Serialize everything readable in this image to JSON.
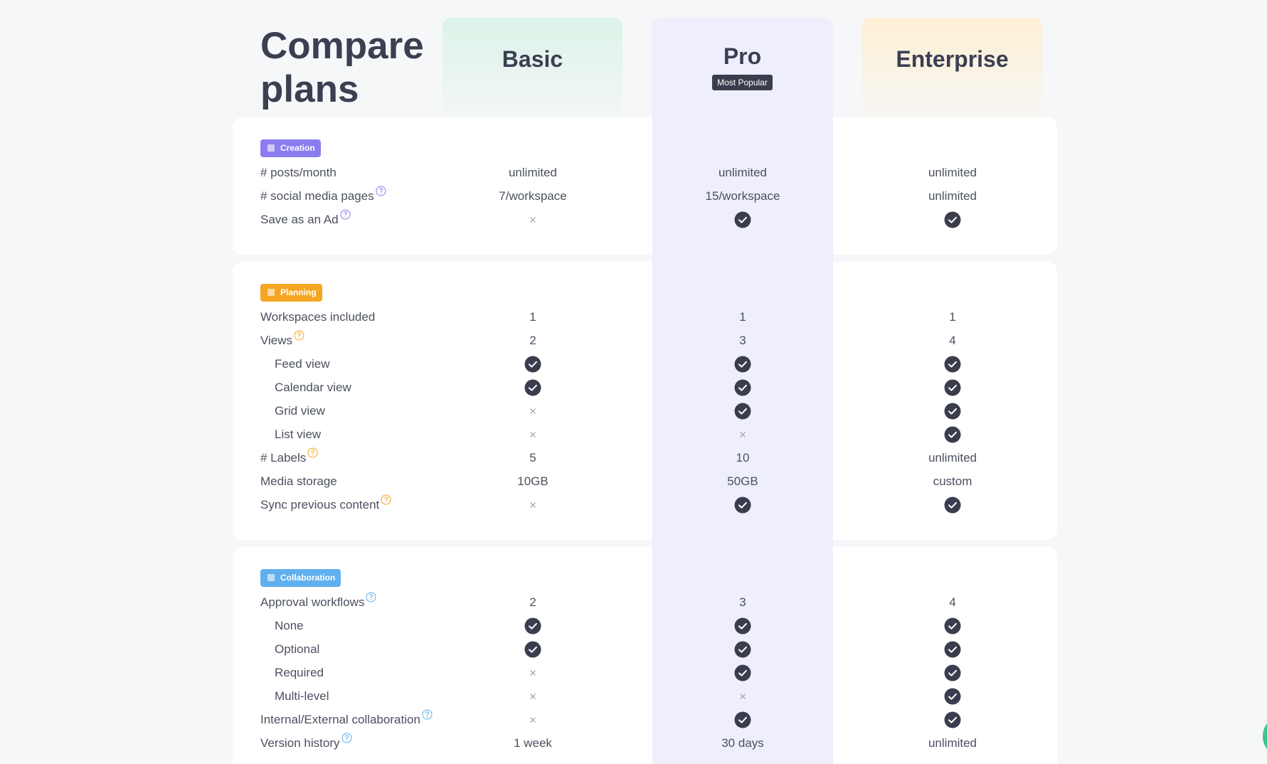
{
  "header": {
    "title": "Compare plans"
  },
  "plans": [
    {
      "name": "Basic"
    },
    {
      "name": "Pro",
      "badge": "Most Popular"
    },
    {
      "name": "Enterprise"
    }
  ],
  "sections": [
    {
      "label": "Creation",
      "color": "#8b7cf0",
      "rows": [
        {
          "label": "# posts/month",
          "values": [
            "unlimited",
            "unlimited",
            "unlimited"
          ]
        },
        {
          "label": "# social media pages",
          "help": true,
          "values": [
            "7/workspace",
            "15/workspace",
            "unlimited"
          ]
        },
        {
          "label": "Save as an Ad",
          "help": true,
          "values": [
            false,
            true,
            true
          ]
        }
      ]
    },
    {
      "label": "Planning",
      "color": "#f5a623",
      "rows": [
        {
          "label": "Workspaces included",
          "values": [
            "1",
            "1",
            "1"
          ]
        },
        {
          "label": "Views",
          "help": true,
          "values": [
            "2",
            "3",
            "4"
          ]
        },
        {
          "label": "Feed view",
          "indent": true,
          "values": [
            true,
            true,
            true
          ]
        },
        {
          "label": "Calendar view",
          "indent": true,
          "values": [
            true,
            true,
            true
          ]
        },
        {
          "label": "Grid view",
          "indent": true,
          "values": [
            false,
            true,
            true
          ]
        },
        {
          "label": "List view",
          "indent": true,
          "values": [
            false,
            false,
            true
          ]
        },
        {
          "label": "# Labels",
          "help": true,
          "values": [
            "5",
            "10",
            "unlimited"
          ]
        },
        {
          "label": "Media storage",
          "values": [
            "10GB",
            "50GB",
            "custom"
          ]
        },
        {
          "label": "Sync previous content",
          "help": true,
          "values": [
            false,
            true,
            true
          ]
        }
      ]
    },
    {
      "label": "Collaboration",
      "color": "#5fb0f0",
      "rows": [
        {
          "label": "Approval workflows",
          "help": true,
          "values": [
            "2",
            "3",
            "4"
          ]
        },
        {
          "label": "None",
          "indent": true,
          "values": [
            true,
            true,
            true
          ]
        },
        {
          "label": "Optional",
          "indent": true,
          "values": [
            true,
            true,
            true
          ]
        },
        {
          "label": "Required",
          "indent": true,
          "values": [
            false,
            true,
            true
          ]
        },
        {
          "label": "Multi-level",
          "indent": true,
          "values": [
            false,
            false,
            true
          ]
        },
        {
          "label": "Internal/External collaboration",
          "help": true,
          "values": [
            false,
            true,
            true
          ]
        },
        {
          "label": "Version history",
          "help": true,
          "values": [
            "1 week",
            "30 days",
            "unlimited"
          ]
        }
      ]
    }
  ]
}
